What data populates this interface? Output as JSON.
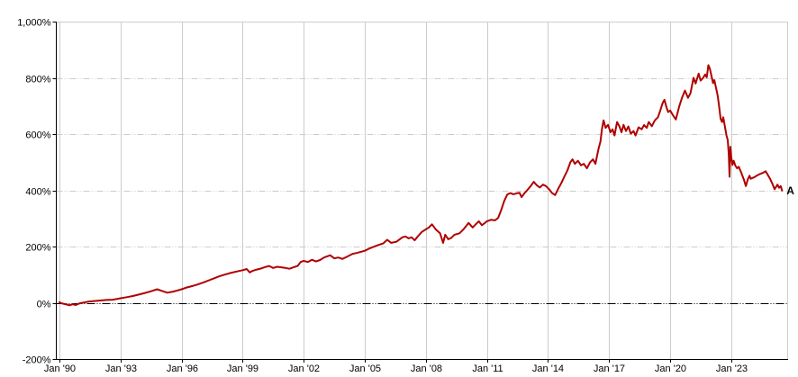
{
  "chart": {
    "end_label": "A",
    "colors": {
      "background": "#ffffff",
      "line": "#b00000",
      "grid": "#cccccc",
      "axis": "#000000",
      "zero_line": "#000000",
      "text": "#000000"
    },
    "y_axis": {
      "ticks": [
        {
          "value": 1000,
          "label": "1,000%"
        },
        {
          "value": 800,
          "label": "800%"
        },
        {
          "value": 600,
          "label": "600%"
        },
        {
          "value": 400,
          "label": "400%"
        },
        {
          "value": 200,
          "label": "200%"
        },
        {
          "value": 0,
          "label": "0%"
        },
        {
          "value": -200,
          "label": "-200%"
        }
      ]
    },
    "x_axis": {
      "ticks": [
        {
          "year": 1990,
          "label": "Jan '90"
        },
        {
          "year": 1993,
          "label": "Jan '93"
        },
        {
          "year": 1996,
          "label": "Jan '96"
        },
        {
          "year": 1999,
          "label": "Jan '99"
        },
        {
          "year": 2002,
          "label": "Jan '02"
        },
        {
          "year": 2005,
          "label": "Jan '05"
        },
        {
          "year": 2008,
          "label": "Jan '08"
        },
        {
          "year": 2011,
          "label": "Jan '11"
        },
        {
          "year": 2014,
          "label": "Jan '14"
        },
        {
          "year": 2017,
          "label": "Jan '17"
        },
        {
          "year": 2020,
          "label": "Jan '20"
        },
        {
          "year": 2023,
          "label": "Jan '23"
        }
      ]
    }
  },
  "chart_data": {
    "type": "line",
    "title": "",
    "xlabel": "",
    "ylabel": "",
    "x_unit": "decimal_year",
    "x_range": [
      1990,
      2025.75
    ],
    "ylim": [
      -200,
      1000
    ],
    "grid": true,
    "legend": "none",
    "zero_baseline": true,
    "series": [
      {
        "name": "A",
        "color": "#b00000",
        "unit": "percent_return",
        "points": [
          [
            1990.0,
            2
          ],
          [
            1990.1,
            -2
          ],
          [
            1990.3,
            -5
          ],
          [
            1990.5,
            -9
          ],
          [
            1990.65,
            -5
          ],
          [
            1990.8,
            -8
          ],
          [
            1991.0,
            -2
          ],
          [
            1991.2,
            1
          ],
          [
            1991.4,
            4
          ],
          [
            1991.7,
            6
          ],
          [
            1992.0,
            8
          ],
          [
            1992.3,
            10
          ],
          [
            1992.6,
            11
          ],
          [
            1992.8,
            13
          ],
          [
            1993.0,
            16
          ],
          [
            1993.3,
            20
          ],
          [
            1993.6,
            24
          ],
          [
            1993.9,
            29
          ],
          [
            1994.2,
            35
          ],
          [
            1994.5,
            41
          ],
          [
            1994.8,
            48
          ],
          [
            1995.0,
            43
          ],
          [
            1995.3,
            36
          ],
          [
            1995.6,
            40
          ],
          [
            1995.8,
            44
          ],
          [
            1996.0,
            48
          ],
          [
            1996.2,
            53
          ],
          [
            1996.45,
            58
          ],
          [
            1996.7,
            63
          ],
          [
            1996.9,
            68
          ],
          [
            1997.1,
            73
          ],
          [
            1997.35,
            80
          ],
          [
            1997.6,
            87
          ],
          [
            1997.85,
            94
          ],
          [
            1998.1,
            100
          ],
          [
            1998.4,
            106
          ],
          [
            1998.7,
            111
          ],
          [
            1999.0,
            116
          ],
          [
            1999.2,
            120
          ],
          [
            1999.35,
            108
          ],
          [
            1999.5,
            114
          ],
          [
            1999.7,
            118
          ],
          [
            1999.9,
            122
          ],
          [
            2000.1,
            127
          ],
          [
            2000.3,
            131
          ],
          [
            2000.5,
            124
          ],
          [
            2000.7,
            128
          ],
          [
            2000.9,
            126
          ],
          [
            2001.1,
            124
          ],
          [
            2001.3,
            121
          ],
          [
            2001.5,
            126
          ],
          [
            2001.7,
            131
          ],
          [
            2001.85,
            145
          ],
          [
            2002.0,
            149
          ],
          [
            2002.2,
            145
          ],
          [
            2002.4,
            153
          ],
          [
            2002.6,
            147
          ],
          [
            2002.8,
            152
          ],
          [
            2003.0,
            161
          ],
          [
            2003.3,
            169
          ],
          [
            2003.5,
            158
          ],
          [
            2003.7,
            161
          ],
          [
            2003.9,
            156
          ],
          [
            2004.1,
            163
          ],
          [
            2004.4,
            174
          ],
          [
            2004.6,
            177
          ],
          [
            2004.8,
            181
          ],
          [
            2005.0,
            185
          ],
          [
            2005.2,
            192
          ],
          [
            2005.4,
            198
          ],
          [
            2005.7,
            206
          ],
          [
            2005.9,
            211
          ],
          [
            2006.1,
            224
          ],
          [
            2006.3,
            213
          ],
          [
            2006.55,
            217
          ],
          [
            2006.85,
            233
          ],
          [
            2007.0,
            236
          ],
          [
            2007.15,
            229
          ],
          [
            2007.3,
            233
          ],
          [
            2007.45,
            222
          ],
          [
            2007.6,
            236
          ],
          [
            2007.8,
            252
          ],
          [
            2008.0,
            261
          ],
          [
            2008.15,
            268
          ],
          [
            2008.3,
            279
          ],
          [
            2008.5,
            260
          ],
          [
            2008.7,
            247
          ],
          [
            2008.85,
            213
          ],
          [
            2008.95,
            242
          ],
          [
            2009.1,
            226
          ],
          [
            2009.25,
            231
          ],
          [
            2009.4,
            242
          ],
          [
            2009.65,
            247
          ],
          [
            2009.85,
            261
          ],
          [
            2010.1,
            284
          ],
          [
            2010.3,
            268
          ],
          [
            2010.45,
            279
          ],
          [
            2010.6,
            290
          ],
          [
            2010.75,
            276
          ],
          [
            2010.9,
            284
          ],
          [
            2011.0,
            290
          ],
          [
            2011.2,
            295
          ],
          [
            2011.4,
            293
          ],
          [
            2011.55,
            302
          ],
          [
            2011.7,
            330
          ],
          [
            2011.85,
            362
          ],
          [
            2012.0,
            385
          ],
          [
            2012.15,
            390
          ],
          [
            2012.3,
            386
          ],
          [
            2012.45,
            389
          ],
          [
            2012.6,
            391
          ],
          [
            2012.7,
            376
          ],
          [
            2012.85,
            390
          ],
          [
            2013.0,
            402
          ],
          [
            2013.15,
            415
          ],
          [
            2013.3,
            430
          ],
          [
            2013.45,
            418
          ],
          [
            2013.6,
            410
          ],
          [
            2013.75,
            420
          ],
          [
            2013.9,
            415
          ],
          [
            2014.05,
            404
          ],
          [
            2014.2,
            390
          ],
          [
            2014.35,
            383
          ],
          [
            2014.5,
            405
          ],
          [
            2014.65,
            425
          ],
          [
            2014.8,
            448
          ],
          [
            2014.95,
            470
          ],
          [
            2015.1,
            500
          ],
          [
            2015.2,
            510
          ],
          [
            2015.32,
            494
          ],
          [
            2015.47,
            505
          ],
          [
            2015.62,
            489
          ],
          [
            2015.76,
            494
          ],
          [
            2015.91,
            478
          ],
          [
            2016.06,
            499
          ],
          [
            2016.21,
            510
          ],
          [
            2016.33,
            494
          ],
          [
            2016.48,
            547
          ],
          [
            2016.58,
            574
          ],
          [
            2016.65,
            617
          ],
          [
            2016.73,
            649
          ],
          [
            2016.83,
            622
          ],
          [
            2016.95,
            633
          ],
          [
            2017.07,
            606
          ],
          [
            2017.17,
            617
          ],
          [
            2017.27,
            595
          ],
          [
            2017.39,
            643
          ],
          [
            2017.51,
            627
          ],
          [
            2017.61,
            606
          ],
          [
            2017.71,
            633
          ],
          [
            2017.83,
            611
          ],
          [
            2017.95,
            627
          ],
          [
            2018.07,
            601
          ],
          [
            2018.2,
            611
          ],
          [
            2018.3,
            595
          ],
          [
            2018.45,
            624
          ],
          [
            2018.6,
            617
          ],
          [
            2018.72,
            632
          ],
          [
            2018.85,
            622
          ],
          [
            2018.95,
            643
          ],
          [
            2019.1,
            628
          ],
          [
            2019.25,
            649
          ],
          [
            2019.4,
            660
          ],
          [
            2019.5,
            680
          ],
          [
            2019.63,
            710
          ],
          [
            2019.72,
            722
          ],
          [
            2019.82,
            695
          ],
          [
            2019.9,
            678
          ],
          [
            2020.0,
            684
          ],
          [
            2020.15,
            666
          ],
          [
            2020.28,
            652
          ],
          [
            2020.44,
            697
          ],
          [
            2020.58,
            729
          ],
          [
            2020.73,
            755
          ],
          [
            2020.88,
            729
          ],
          [
            2021.0,
            745
          ],
          [
            2021.15,
            800
          ],
          [
            2021.25,
            780
          ],
          [
            2021.4,
            815
          ],
          [
            2021.5,
            790
          ],
          [
            2021.62,
            800
          ],
          [
            2021.72,
            812
          ],
          [
            2021.8,
            802
          ],
          [
            2021.88,
            845
          ],
          [
            2021.95,
            833
          ],
          [
            2022.05,
            800
          ],
          [
            2022.11,
            781
          ],
          [
            2022.17,
            792
          ],
          [
            2022.33,
            739
          ],
          [
            2022.39,
            707
          ],
          [
            2022.48,
            654
          ],
          [
            2022.55,
            643
          ],
          [
            2022.61,
            660
          ],
          [
            2022.7,
            622
          ],
          [
            2022.77,
            595
          ],
          [
            2022.83,
            579
          ],
          [
            2022.88,
            530
          ],
          [
            2022.92,
            448
          ],
          [
            2022.96,
            555
          ],
          [
            2023.0,
            520
          ],
          [
            2023.06,
            490
          ],
          [
            2023.12,
            505
          ],
          [
            2023.2,
            488
          ],
          [
            2023.29,
            478
          ],
          [
            2023.37,
            484
          ],
          [
            2023.5,
            462
          ],
          [
            2023.62,
            438
          ],
          [
            2023.72,
            415
          ],
          [
            2023.82,
            440
          ],
          [
            2023.9,
            452
          ],
          [
            2023.96,
            441
          ],
          [
            2024.12,
            446
          ],
          [
            2024.25,
            452
          ],
          [
            2024.38,
            457
          ],
          [
            2024.56,
            462
          ],
          [
            2024.69,
            468
          ],
          [
            2024.78,
            457
          ],
          [
            2024.91,
            441
          ],
          [
            2025.04,
            420
          ],
          [
            2025.13,
            404
          ],
          [
            2025.27,
            420
          ],
          [
            2025.35,
            409
          ],
          [
            2025.43,
            415
          ],
          [
            2025.5,
            399
          ]
        ]
      }
    ]
  }
}
